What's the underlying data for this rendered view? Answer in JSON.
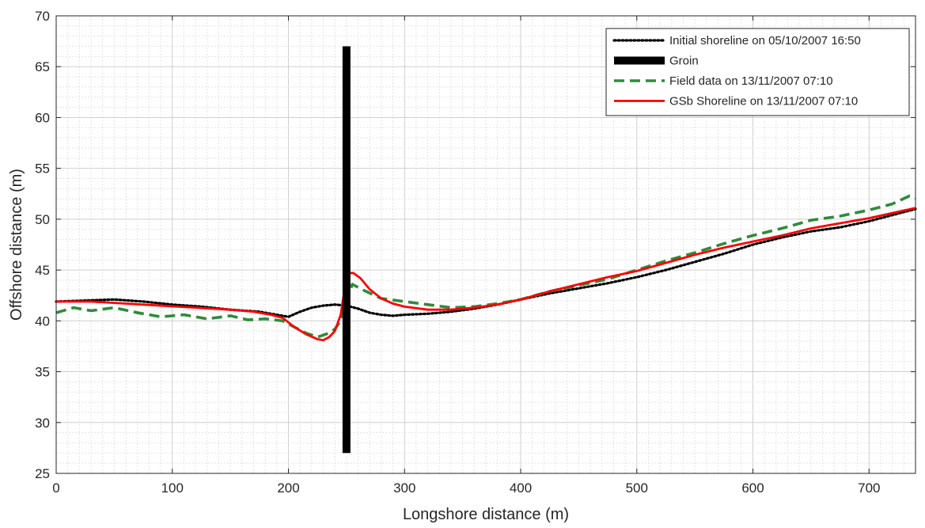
{
  "chart_data": {
    "type": "line",
    "title": "",
    "xlabel": "Longshore distance (m)",
    "ylabel": "Offshore distance (m)",
    "xlim": [
      0,
      740
    ],
    "ylim": [
      25,
      70
    ],
    "xticks": [
      0,
      100,
      200,
      300,
      400,
      500,
      600,
      700
    ],
    "yticks": [
      25,
      30,
      35,
      40,
      45,
      50,
      55,
      60,
      65,
      70
    ],
    "xtick_labels": [
      "0",
      "100",
      "200",
      "300",
      "400",
      "500",
      "600",
      "700"
    ],
    "ytick_labels": [
      "25",
      "30",
      "35",
      "40",
      "45",
      "50",
      "55",
      "60",
      "65",
      "70"
    ],
    "grid": true,
    "minor_grid": true,
    "legend_position": "top-right",
    "colors": {
      "initial": "#000000",
      "groin": "#000000",
      "field": "#2e8b3a",
      "gsb": "#ff0000",
      "grid": "#d9d9d9",
      "axis": "#262626"
    },
    "series": [
      {
        "key": "initial",
        "name": "Initial shoreline on 05/10/2007 16:50",
        "style": "dotted",
        "x": [
          0,
          25,
          50,
          75,
          100,
          125,
          150,
          175,
          190,
          200,
          210,
          220,
          230,
          240,
          250,
          260,
          270,
          280,
          290,
          300,
          320,
          340,
          360,
          380,
          400,
          425,
          450,
          475,
          500,
          525,
          550,
          575,
          600,
          625,
          650,
          675,
          700,
          720,
          740
        ],
        "y": [
          41.9,
          42.0,
          42.1,
          41.9,
          41.6,
          41.4,
          41.1,
          40.9,
          40.6,
          40.4,
          40.9,
          41.3,
          41.5,
          41.6,
          41.5,
          41.2,
          40.8,
          40.6,
          40.5,
          40.6,
          40.7,
          40.9,
          41.2,
          41.6,
          42.1,
          42.7,
          43.2,
          43.7,
          44.3,
          45.0,
          45.8,
          46.6,
          47.5,
          48.2,
          48.8,
          49.2,
          49.8,
          50.4,
          51.0
        ]
      },
      {
        "key": "groin",
        "name": "Groin",
        "style": "bar",
        "x": [
          250,
          250
        ],
        "y": [
          27,
          67
        ]
      },
      {
        "key": "field",
        "name": "Field data on 13/11/2007 07:10",
        "style": "dashed",
        "x": [
          0,
          15,
          30,
          50,
          70,
          90,
          110,
          130,
          150,
          165,
          180,
          195,
          205,
          215,
          225,
          235,
          240,
          245,
          250,
          255,
          265,
          280,
          300,
          320,
          340,
          360,
          380,
          400,
          425,
          450,
          475,
          500,
          525,
          550,
          575,
          600,
          625,
          650,
          675,
          700,
          720,
          735,
          740
        ],
        "y": [
          40.8,
          41.3,
          41.0,
          41.3,
          40.8,
          40.4,
          40.6,
          40.2,
          40.5,
          40.1,
          40.2,
          40.0,
          39.4,
          38.8,
          38.4,
          38.8,
          39.2,
          40.0,
          42.0,
          43.6,
          43.0,
          42.2,
          41.9,
          41.6,
          41.3,
          41.4,
          41.7,
          42.1,
          42.9,
          43.5,
          44.1,
          45.0,
          45.9,
          46.7,
          47.6,
          48.4,
          49.1,
          49.9,
          50.3,
          50.9,
          51.5,
          52.3,
          52.1
        ]
      },
      {
        "key": "gsb",
        "name": "GSb Shoreline on 13/11/2007 07:10",
        "style": "solid",
        "x": [
          0,
          30,
          60,
          90,
          120,
          150,
          170,
          185,
          195,
          205,
          215,
          225,
          230,
          235,
          240,
          245,
          248,
          252,
          256,
          262,
          270,
          280,
          290,
          300,
          320,
          340,
          360,
          380,
          400,
          425,
          450,
          475,
          500,
          525,
          550,
          575,
          600,
          625,
          650,
          675,
          700,
          720,
          740
        ],
        "y": [
          41.9,
          41.9,
          41.7,
          41.5,
          41.3,
          41.1,
          40.9,
          40.6,
          40.3,
          39.4,
          38.7,
          38.2,
          38.1,
          38.4,
          39.0,
          40.6,
          42.8,
          44.7,
          44.7,
          44.2,
          43.1,
          42.2,
          41.7,
          41.4,
          41.1,
          41.1,
          41.3,
          41.6,
          42.1,
          42.9,
          43.6,
          44.3,
          44.9,
          45.7,
          46.5,
          47.2,
          47.8,
          48.4,
          49.1,
          49.6,
          50.1,
          50.6,
          51.1
        ]
      }
    ]
  }
}
